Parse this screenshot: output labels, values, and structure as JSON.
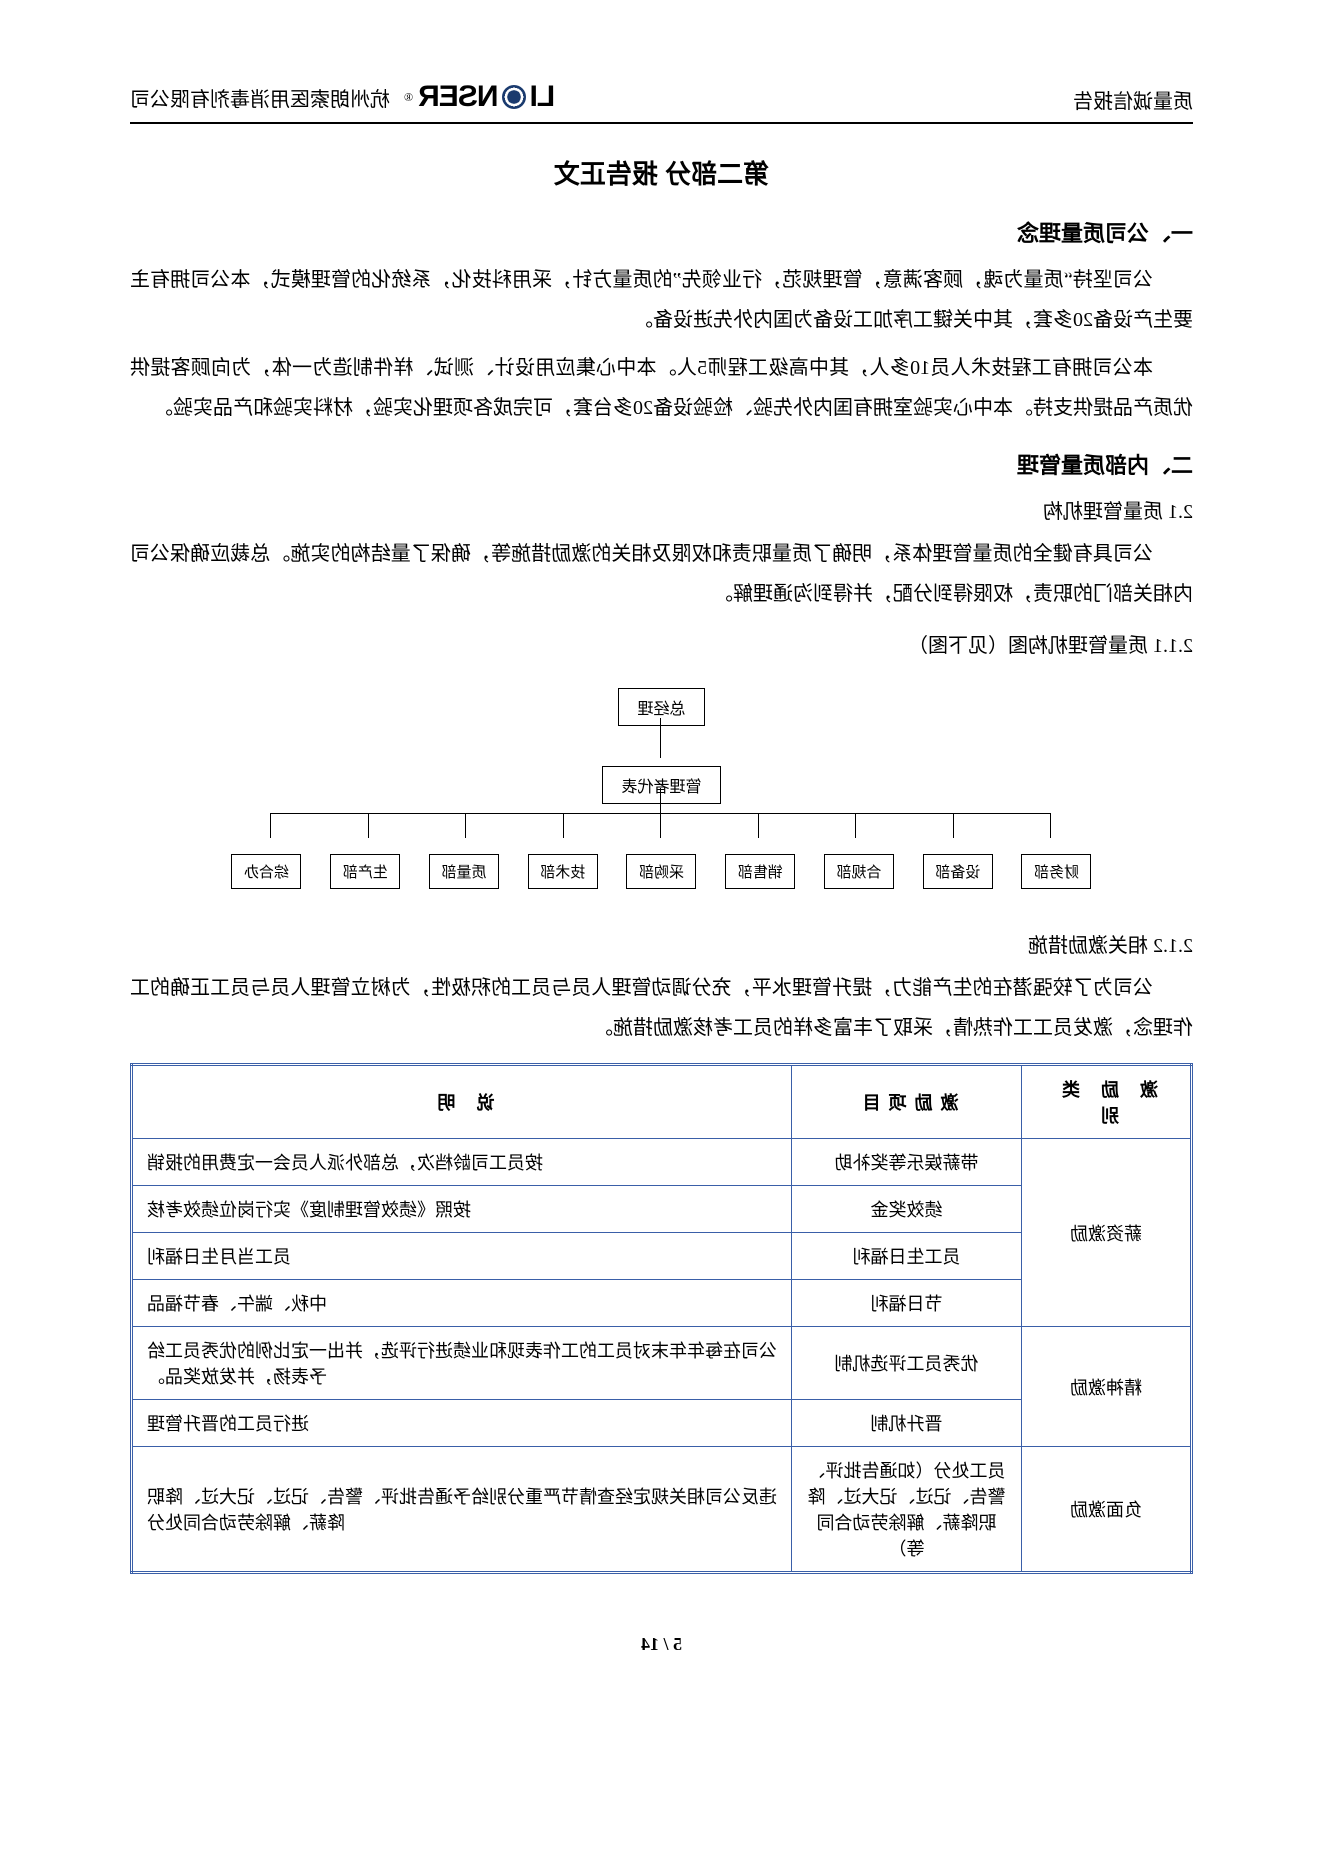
{
  "header": {
    "left_text": "质量诚信报告",
    "logo_prefix": "LI",
    "logo_suffix": "NSER",
    "company_suffix": "杭州朗索医用消毒剂有限公司"
  },
  "title": "第二部分  报告正文",
  "s1": {
    "heading": "一、公司质量理念",
    "p1": "公司坚持“质量为魂，顾客满意，管理规范，行业领先”的质量方针，采用科技化，系统化的管理模式，本公司拥有主要生产设备20多套，其中关键工序加工设备为国内外先进设备。",
    "p2": "本公司拥有工程技术人员10多人，其中高级工程师5人。本中心集应用设计、测试、样件制造为一体，为向顾客提供优质产品提供支持。本中心实验室拥有国内外先验、检验设备20多台套，可完成各项理化实验，材料实验和产品实验。"
  },
  "s2": {
    "heading": "二、内部质量管理",
    "h21": "2.1 质量管理机构",
    "p21": "公司具有健全的质量管理体系，明确了质量职责和权限及相关的激励措施等，确保了量结构的实施。总裁应确保公司内相关部门的职责，权限得到分配，并得到沟通理解。",
    "h211": "2.1.1 质量管理机构图（见下图）",
    "h212": "2.1.2 相关激励措施",
    "p212": "公司为了较强潜在的生产能力，提升管理水平，充分调动管理人员与员工的积极性，为树立管理人员与员工正确的工作理念，激发员工工作热情，采取了丰富多样的员工考核激励措施。"
  },
  "orgchart": {
    "level1": "总经理",
    "level2": "管理者代表",
    "level3": [
      "财务部",
      "设备部",
      "合规部",
      "销售部",
      "采购部",
      "技术部",
      "质量部",
      "生产部",
      "综合办"
    ]
  },
  "table": {
    "headers": {
      "cat": "激 励 类 别",
      "proj": "激励项目",
      "desc": "说     明"
    },
    "rows": [
      {
        "cat": "薪资激励",
        "cat_rowspan": 4,
        "proj": "带薪娱乐等奖补助",
        "desc": "按员工司龄档次，总部外派人员会一定费用的报销"
      },
      {
        "proj": "绩效奖金",
        "desc": "按照《绩效管理制度》实行岗位绩效考核"
      },
      {
        "proj": "员工生日福利",
        "desc": "员工当月生日福利"
      },
      {
        "proj": "节日福利",
        "desc": "中秋、端午、春节福品"
      },
      {
        "cat": "精神激励",
        "cat_rowspan": 2,
        "proj": "优秀员工评选机制",
        "desc": "公司在每年年末对员工的工作表现和业绩进行评选，并出一定比例的优秀员工给予表扬，并发放奖品。"
      },
      {
        "proj": "晋升机制",
        "desc": "进行员工的晋升管理"
      },
      {
        "cat": "负面激励",
        "cat_rowspan": 1,
        "proj": "员工处分（如通告批评、警告、记过、记大过、降职降薪、解除劳动合同等）",
        "desc": "违反公司相关规定经查情节严重分别给予通告批评、警告、记过、记大过、降职降薪、解除劳动合同处分"
      }
    ]
  },
  "page": "5 / 14"
}
